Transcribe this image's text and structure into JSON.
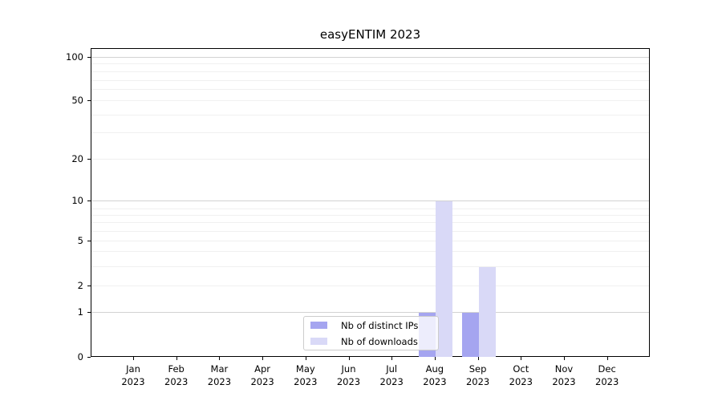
{
  "chart_data": {
    "type": "bar",
    "title": "easyENTIM 2023",
    "categories": [
      "Jan 2023",
      "Feb 2023",
      "Mar 2023",
      "Apr 2023",
      "May 2023",
      "Jun 2023",
      "Jul 2023",
      "Aug 2023",
      "Sep 2023",
      "Oct 2023",
      "Nov 2023",
      "Dec 2023"
    ],
    "series": [
      {
        "name": "Nb of distinct IPs",
        "color": "#a5a5f0",
        "values": [
          0,
          0,
          0,
          0,
          0,
          0,
          0,
          1,
          1,
          0,
          0,
          0
        ]
      },
      {
        "name": "Nb of downloads",
        "color": "#d9d9f7",
        "values": [
          0,
          0,
          0,
          0,
          0,
          0,
          0,
          10,
          3,
          0,
          0,
          0
        ]
      }
    ],
    "y_axis": {
      "scale": "symlog",
      "tick_values": [
        0,
        1,
        2,
        5,
        10,
        20,
        50,
        100
      ],
      "tick_labels": [
        "0",
        "1",
        "2",
        "5",
        "10",
        "20",
        "50",
        "100"
      ],
      "ylim": [
        0,
        115
      ]
    },
    "x_axis": {
      "tick_label_lines": 2
    },
    "legend": {
      "position": "lower-center-inside"
    },
    "grid": {
      "horizontal": true,
      "major_color": "#d2d2d2",
      "minor_color": "#f0f0f0"
    }
  }
}
